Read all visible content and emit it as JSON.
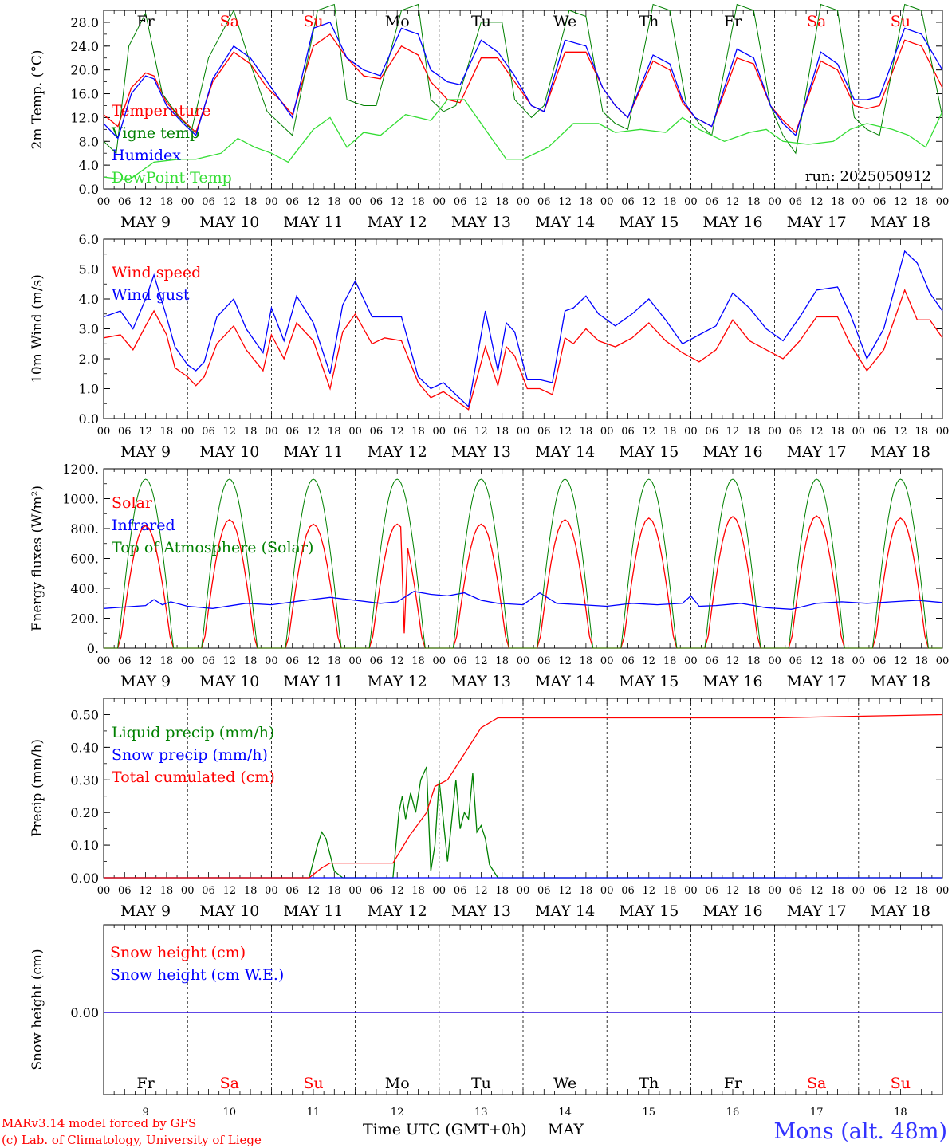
{
  "day_labels": [
    "MAY  9",
    "MAY 10",
    "MAY 11",
    "MAY 12",
    "MAY 13",
    "MAY 14",
    "MAY 15",
    "MAY 16",
    "MAY 17",
    "MAY 18"
  ],
  "weekdays": [
    "Fr",
    "Sa",
    "Su",
    "Mo",
    "Tu",
    "We",
    "Th",
    "Fr",
    "Sa",
    "Su"
  ],
  "weekday_colors": [
    "#000000",
    "#ff0000",
    "#ff0000",
    "#000000",
    "#000000",
    "#000000",
    "#000000",
    "#000000",
    "#ff0000",
    "#ff0000"
  ],
  "day_numbers": [
    "9",
    "10",
    "11",
    "12",
    "13",
    "14",
    "15",
    "16",
    "17",
    "18"
  ],
  "hour_ticks": [
    "00",
    "06",
    "12",
    "18"
  ],
  "run_label": "run: 2025050912",
  "xaxis_title": "Time UTC (GMT+0h)",
  "xaxis_month": "MAY",
  "credit_line1": "MARv3.14 model forced by GFS",
  "credit_line2": "(c) Lab. of Climatology, University of Liege",
  "station": "Mons (alt. 48m)",
  "colors": {
    "red": "#ff0000",
    "green": "#008000",
    "blue": "#0000ff",
    "lightgreen": "#33dd33"
  },
  "chart_data": [
    {
      "type": "line",
      "ylabel": "2m Temp. (°C)",
      "ylim": [
        0,
        30
      ],
      "yticks": [
        "0.0",
        "4.0",
        "8.0",
        "12.0",
        "16.0",
        "20.0",
        "24.0",
        "28.0"
      ],
      "x_unit": "days since May 9 00 UTC",
      "series": [
        {
          "name": "Temperature",
          "color": "#ff0000",
          "x": [
            0,
            0.17,
            0.33,
            0.5,
            0.6,
            0.75,
            0.95,
            1.1,
            1.3,
            1.55,
            1.75,
            1.95,
            2.1,
            2.25,
            2.5,
            2.7,
            2.9,
            3.1,
            3.3,
            3.55,
            3.75,
            3.9,
            4.1,
            4.25,
            4.5,
            4.7,
            4.9,
            5.1,
            5.25,
            5.5,
            5.75,
            5.95,
            6.1,
            6.25,
            6.55,
            6.75,
            6.9,
            7.05,
            7.25,
            7.55,
            7.75,
            7.95,
            8.1,
            8.25,
            8.55,
            8.75,
            8.95,
            9.1,
            9.25,
            9.55,
            9.75,
            10
          ],
          "y": [
            12.5,
            10.5,
            17,
            19.5,
            19,
            14.5,
            11.5,
            9.5,
            18,
            23,
            21,
            17,
            15,
            12.5,
            24,
            26,
            22,
            19,
            18.5,
            24,
            22.5,
            18,
            15,
            14.5,
            22,
            22,
            18,
            14,
            13,
            23,
            23,
            17,
            14,
            12,
            21.5,
            20,
            14.5,
            12,
            10.5,
            22,
            21,
            14,
            11.5,
            9.5,
            21.5,
            20,
            14,
            13.5,
            14,
            25,
            24,
            17
          ]
        },
        {
          "name": "Vigne temp",
          "color": "#008000",
          "x": [
            0,
            0.15,
            0.3,
            0.5,
            0.7,
            0.9,
            1.05,
            1.25,
            1.55,
            1.75,
            1.95,
            2.1,
            2.25,
            2.55,
            2.75,
            2.9,
            3.1,
            3.25,
            3.55,
            3.75,
            3.9,
            4.05,
            4.2,
            4.5,
            4.75,
            4.9,
            5.1,
            5.25,
            5.55,
            5.75,
            5.95,
            6.1,
            6.25,
            6.55,
            6.75,
            6.95,
            7.1,
            7.25,
            7.55,
            7.75,
            7.95,
            8.1,
            8.25,
            8.55,
            8.75,
            8.95,
            9.1,
            9.25,
            9.55,
            9.75,
            10
          ],
          "y": [
            8,
            6,
            24,
            29.5,
            16,
            12,
            10,
            22,
            30,
            21,
            13,
            11,
            9,
            30,
            31,
            15,
            14,
            14,
            30,
            31,
            15,
            13,
            14,
            28,
            28,
            15,
            12,
            14,
            30,
            29,
            13,
            11,
            10,
            31,
            30,
            14,
            11,
            9,
            31,
            30,
            14,
            9,
            6,
            31,
            30,
            12,
            10,
            9,
            31,
            30,
            12
          ]
        },
        {
          "name": "Humidex",
          "color": "#0000ff",
          "x": [
            0,
            0.17,
            0.33,
            0.5,
            0.6,
            0.75,
            0.95,
            1.1,
            1.3,
            1.55,
            1.75,
            1.95,
            2.1,
            2.25,
            2.5,
            2.7,
            2.9,
            3.1,
            3.3,
            3.55,
            3.75,
            3.9,
            4.1,
            4.25,
            4.5,
            4.7,
            4.9,
            5.1,
            5.25,
            5.5,
            5.75,
            5.95,
            6.1,
            6.25,
            6.55,
            6.75,
            6.9,
            7.05,
            7.25,
            7.55,
            7.75,
            7.95,
            8.1,
            8.25,
            8.55,
            8.75,
            8.95,
            9.1,
            9.25,
            9.55,
            9.75,
            10
          ],
          "y": [
            11,
            8.5,
            16,
            19,
            18.5,
            14,
            11,
            9,
            18.5,
            24,
            22,
            18,
            15,
            12,
            27,
            28,
            22,
            20,
            19,
            27,
            26,
            20,
            18,
            17.5,
            25,
            23,
            19,
            14,
            13,
            25,
            24,
            17,
            14,
            12,
            22.5,
            21,
            15,
            12,
            10.5,
            23.5,
            22,
            14,
            11,
            9,
            23,
            21,
            15,
            15,
            15.5,
            27,
            26,
            20
          ]
        },
        {
          "name": "DewPoint Temp",
          "color": "#33dd33",
          "x": [
            0,
            0.3,
            0.6,
            0.9,
            1.1,
            1.4,
            1.6,
            1.8,
            2.0,
            2.2,
            2.5,
            2.7,
            2.9,
            3.1,
            3.3,
            3.6,
            3.9,
            4.1,
            4.3,
            4.6,
            4.8,
            5.0,
            5.3,
            5.6,
            5.9,
            6.1,
            6.4,
            6.7,
            6.9,
            7.1,
            7.4,
            7.7,
            7.9,
            8.1,
            8.4,
            8.7,
            8.9,
            9.1,
            9.4,
            9.6,
            9.8,
            10
          ],
          "y": [
            2,
            1.5,
            4.5,
            5,
            5,
            6,
            8.5,
            7,
            6,
            4.5,
            10,
            12,
            7,
            9.5,
            9,
            12.5,
            11.5,
            15,
            15,
            9,
            5,
            5,
            7,
            11,
            11,
            9.5,
            10,
            9.5,
            12,
            10,
            8,
            9.5,
            10,
            8,
            7.5,
            8,
            10,
            11,
            10,
            9,
            7,
            13
          ]
        }
      ]
    },
    {
      "type": "line",
      "ylabel": "10m Wind (m/s)",
      "ylim": [
        0,
        6
      ],
      "yticks": [
        "0.0",
        "1.0",
        "2.0",
        "3.0",
        "4.0",
        "5.0",
        "6.0"
      ],
      "x_unit": "days since May 9 00 UTC",
      "series": [
        {
          "name": "Wind speed",
          "color": "#ff0000",
          "x": [
            0,
            0.2,
            0.35,
            0.5,
            0.6,
            0.75,
            0.85,
            1.0,
            1.1,
            1.2,
            1.35,
            1.55,
            1.7,
            1.9,
            2.0,
            2.15,
            2.3,
            2.5,
            2.7,
            2.85,
            3.0,
            3.2,
            3.35,
            3.55,
            3.75,
            3.9,
            4.05,
            4.2,
            4.35,
            4.55,
            4.7,
            4.8,
            4.9,
            5.05,
            5.2,
            5.35,
            5.5,
            5.6,
            5.75,
            5.9,
            6.1,
            6.3,
            6.5,
            6.7,
            6.9,
            7.1,
            7.3,
            7.5,
            7.7,
            7.9,
            8.1,
            8.3,
            8.5,
            8.75,
            8.9,
            9.1,
            9.3,
            9.55,
            9.7,
            9.85,
            10
          ],
          "y": [
            2.7,
            2.8,
            2.3,
            3.1,
            3.6,
            2.8,
            1.7,
            1.4,
            1.1,
            1.4,
            2.5,
            3.1,
            2.3,
            1.6,
            2.8,
            2.0,
            3.2,
            2.6,
            1.0,
            2.9,
            3.5,
            2.5,
            2.7,
            2.6,
            1.2,
            0.7,
            0.9,
            0.6,
            0.3,
            2.4,
            1.1,
            2.4,
            2.1,
            1.0,
            1.0,
            0.8,
            2.7,
            2.5,
            3.0,
            2.6,
            2.4,
            2.7,
            3.2,
            2.6,
            2.2,
            1.9,
            2.3,
            3.3,
            2.6,
            2.3,
            2.0,
            2.6,
            3.4,
            3.4,
            2.5,
            1.6,
            2.3,
            4.3,
            3.3,
            3.3,
            2.7
          ]
        },
        {
          "name": "Wind gust",
          "color": "#0000ff",
          "x": [
            0,
            0.2,
            0.35,
            0.5,
            0.6,
            0.75,
            0.85,
            1.0,
            1.1,
            1.2,
            1.35,
            1.55,
            1.7,
            1.9,
            2.0,
            2.15,
            2.3,
            2.5,
            2.7,
            2.85,
            3.0,
            3.2,
            3.35,
            3.55,
            3.75,
            3.9,
            4.05,
            4.2,
            4.35,
            4.55,
            4.7,
            4.8,
            4.9,
            5.05,
            5.2,
            5.35,
            5.5,
            5.6,
            5.75,
            5.9,
            6.1,
            6.3,
            6.5,
            6.7,
            6.9,
            7.1,
            7.3,
            7.5,
            7.7,
            7.9,
            8.1,
            8.3,
            8.5,
            8.75,
            8.9,
            9.1,
            9.3,
            9.55,
            9.7,
            9.85,
            10
          ],
          "y": [
            3.4,
            3.6,
            3.0,
            4.0,
            4.8,
            3.4,
            2.4,
            1.8,
            1.6,
            1.9,
            3.4,
            4.0,
            3.0,
            2.2,
            3.7,
            2.6,
            4.1,
            3.2,
            1.5,
            3.8,
            4.6,
            3.4,
            3.4,
            3.4,
            1.4,
            1.0,
            1.2,
            0.8,
            0.4,
            3.6,
            1.6,
            3.2,
            2.9,
            1.3,
            1.3,
            1.2,
            3.6,
            3.7,
            4.1,
            3.5,
            3.1,
            3.5,
            4.0,
            3.3,
            2.5,
            2.8,
            3.1,
            4.2,
            3.7,
            3.0,
            2.6,
            3.4,
            4.3,
            4.4,
            3.5,
            2.0,
            3.0,
            5.6,
            5.2,
            4.2,
            3.6
          ]
        }
      ]
    },
    {
      "type": "line",
      "ylabel": "Energy fluxes (W/m²)",
      "ylim": [
        0,
        1200
      ],
      "yticks": [
        "0.",
        "200.",
        "400.",
        "600.",
        "800.",
        "1000.",
        "1200."
      ],
      "x_unit": "days since May 9 00 UTC",
      "series": [
        {
          "name": "Solar",
          "color": "#ff0000",
          "peaks": [
            820,
            860,
            830,
            830,
            830,
            860,
            870,
            880,
            885,
            870
          ],
          "dips": [
            {
              "x": 3.6,
              "y": 100
            },
            {
              "x": 3.7,
              "y": 450
            },
            {
              "x": 4.1,
              "y": 480
            },
            {
              "x": 4.2,
              "y": 300
            },
            {
              "x": 5.15,
              "y": 200
            }
          ]
        },
        {
          "name": "Infrared",
          "color": "#0000ff",
          "x": [
            0,
            0.5,
            0.6,
            0.7,
            0.8,
            1.0,
            1.3,
            1.7,
            2.0,
            2.4,
            2.7,
            3.0,
            3.3,
            3.5,
            3.7,
            3.9,
            4.1,
            4.3,
            4.5,
            4.7,
            5.0,
            5.2,
            5.4,
            5.7,
            6.0,
            6.3,
            6.6,
            6.9,
            7.0,
            7.1,
            7.3,
            7.6,
            7.9,
            8.2,
            8.5,
            8.8,
            9.1,
            9.4,
            9.7,
            10
          ],
          "y": [
            265,
            285,
            325,
            290,
            310,
            280,
            265,
            300,
            290,
            320,
            340,
            320,
            300,
            310,
            380,
            360,
            350,
            370,
            320,
            300,
            290,
            370,
            300,
            290,
            280,
            300,
            290,
            300,
            350,
            280,
            285,
            300,
            270,
            260,
            300,
            310,
            300,
            310,
            320,
            305
          ]
        },
        {
          "name": "Top of Atmosphere (Solar)",
          "color": "#008000",
          "peak": 1130
        }
      ]
    },
    {
      "type": "line",
      "ylabel": "Precip (mm/h)",
      "ylim": [
        0,
        0.55
      ],
      "yticks": [
        "0.00",
        "0.10",
        "0.20",
        "0.30",
        "0.40",
        "0.50"
      ],
      "x_unit": "days since May 9 00 UTC",
      "series": [
        {
          "name": "Liquid precip (mm/h)",
          "color": "#008000",
          "x": [
            0,
            2.45,
            2.55,
            2.6,
            2.65,
            2.75,
            2.85,
            3.45,
            3.52,
            3.56,
            3.6,
            3.66,
            3.72,
            3.78,
            3.85,
            3.9,
            3.95,
            4.0,
            4.1,
            4.2,
            4.25,
            4.3,
            4.35,
            4.4,
            4.45,
            4.5,
            4.55,
            4.6,
            4.7,
            10
          ],
          "y": [
            0,
            0,
            0.1,
            0.14,
            0.12,
            0.02,
            0,
            0,
            0.2,
            0.25,
            0.18,
            0.26,
            0.2,
            0.3,
            0.34,
            0.02,
            0.1,
            0.3,
            0.05,
            0.3,
            0.15,
            0.2,
            0.18,
            0.32,
            0.14,
            0.16,
            0.12,
            0.04,
            0,
            0
          ]
        },
        {
          "name": "Snow precip (mm/h)",
          "color": "#0000ff",
          "x": [
            0,
            10
          ],
          "y": [
            0,
            0
          ]
        },
        {
          "name": "Total cumulated (cm)",
          "color": "#ff0000",
          "x": [
            0,
            2.45,
            2.6,
            2.7,
            3.0,
            3.3,
            3.45,
            3.65,
            3.85,
            3.95,
            4.1,
            4.3,
            4.5,
            4.7,
            5.0,
            6.0,
            7.0,
            8.0,
            9.0,
            10
          ],
          "y": [
            0,
            0,
            0.03,
            0.045,
            0.045,
            0.045,
            0.045,
            0.13,
            0.2,
            0.28,
            0.3,
            0.38,
            0.46,
            0.49,
            0.49,
            0.49,
            0.49,
            0.49,
            0.495,
            0.5
          ]
        }
      ]
    },
    {
      "type": "line",
      "ylabel": "Snow height (cm)",
      "yticks": [
        "0.00"
      ],
      "series": [
        {
          "name": "Snow height (cm)",
          "color": "#ff0000",
          "x": [
            0,
            10
          ],
          "y": [
            0,
            0
          ]
        },
        {
          "name": "Snow height (cm W.E.)",
          "color": "#0000ff",
          "x": [
            0,
            10
          ],
          "y": [
            0,
            0
          ]
        }
      ]
    }
  ]
}
